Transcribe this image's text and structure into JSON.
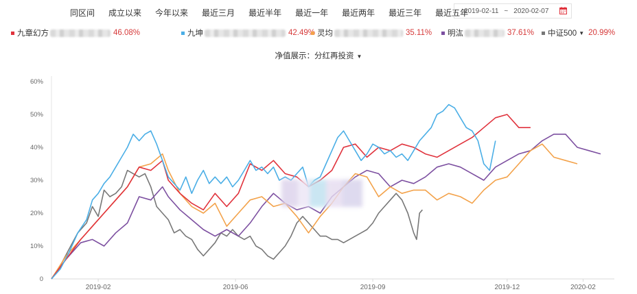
{
  "periods": [
    "同区间",
    "成立以来",
    "今年以来",
    "最近三月",
    "最近半年",
    "最近一年",
    "最近两年",
    "最近三年",
    "最近五年"
  ],
  "date_range": {
    "start": "2019-02-11",
    "sep": "~",
    "end": "2020-02-07"
  },
  "calendar_icon": "calendar-icon",
  "legend": [
    {
      "label": "九章幻方",
      "pct": "46.08%",
      "color": "#e0323c"
    },
    {
      "label": "九坤",
      "pct": "42.49%",
      "color": "#4aaee6"
    },
    {
      "label": "灵均",
      "pct": "35.11%",
      "color": "#f3a24a"
    },
    {
      "label": "明汯",
      "pct": "37.61%",
      "color": "#7c4fa0"
    },
    {
      "label": "中证500",
      "pct": "20.99%",
      "color": "#777777"
    }
  ],
  "nav_display": {
    "label": "净值展示：分红再投资"
  },
  "chart_data": {
    "type": "line",
    "x_labels": [
      "2019-02",
      "2019-06",
      "2019-09",
      "2019-12",
      "2020-02"
    ],
    "y_ticks": [
      "0",
      "10%",
      "20%",
      "30%",
      "40%",
      "50%",
      "60%"
    ],
    "ylim": [
      0,
      60
    ],
    "grid": false,
    "series": [
      {
        "name": "中证500",
        "color": "#777777",
        "points": [
          [
            0,
            0
          ],
          [
            3,
            4
          ],
          [
            6,
            9
          ],
          [
            9,
            14
          ],
          [
            12,
            17
          ],
          [
            14,
            22
          ],
          [
            16,
            19
          ],
          [
            18,
            27
          ],
          [
            20,
            25
          ],
          [
            22,
            26
          ],
          [
            24,
            28
          ],
          [
            26,
            33
          ],
          [
            28,
            32
          ],
          [
            30,
            31
          ],
          [
            32,
            32
          ],
          [
            34,
            28
          ],
          [
            36,
            22
          ],
          [
            38,
            20
          ],
          [
            40,
            18
          ],
          [
            42,
            14
          ],
          [
            44,
            15
          ],
          [
            46,
            13
          ],
          [
            48,
            12
          ],
          [
            50,
            9
          ],
          [
            52,
            7
          ],
          [
            54,
            9
          ],
          [
            56,
            11
          ],
          [
            58,
            14
          ],
          [
            60,
            13
          ],
          [
            62,
            15
          ],
          [
            64,
            13
          ],
          [
            66,
            12
          ],
          [
            68,
            13
          ],
          [
            70,
            10
          ],
          [
            72,
            9
          ],
          [
            74,
            7
          ],
          [
            76,
            6
          ],
          [
            78,
            8
          ],
          [
            80,
            10
          ],
          [
            82,
            13
          ],
          [
            84,
            17
          ],
          [
            86,
            19
          ],
          [
            88,
            17
          ],
          [
            90,
            15
          ],
          [
            92,
            13
          ],
          [
            94,
            13
          ],
          [
            96,
            12
          ],
          [
            98,
            12
          ],
          [
            100,
            11
          ],
          [
            102,
            12
          ],
          [
            104,
            13
          ],
          [
            106,
            14
          ],
          [
            108,
            15
          ],
          [
            110,
            17
          ],
          [
            112,
            20
          ],
          [
            114,
            22
          ],
          [
            116,
            24
          ],
          [
            118,
            26
          ],
          [
            120,
            24
          ],
          [
            122,
            20
          ],
          [
            124,
            14
          ],
          [
            125,
            12
          ],
          [
            126,
            20
          ],
          [
            127,
            21
          ]
        ]
      },
      {
        "name": "明汯",
        "color": "#7c4fa0",
        "points": [
          [
            0,
            0
          ],
          [
            5,
            6
          ],
          [
            10,
            11
          ],
          [
            14,
            12
          ],
          [
            18,
            10
          ],
          [
            22,
            14
          ],
          [
            26,
            17
          ],
          [
            30,
            25
          ],
          [
            34,
            24
          ],
          [
            38,
            28
          ],
          [
            40,
            25
          ],
          [
            44,
            21
          ],
          [
            48,
            18
          ],
          [
            52,
            15
          ],
          [
            56,
            13
          ],
          [
            60,
            15
          ],
          [
            64,
            13
          ],
          [
            68,
            17
          ],
          [
            72,
            22
          ],
          [
            76,
            26
          ],
          [
            80,
            23
          ],
          [
            84,
            21
          ],
          [
            88,
            22
          ],
          [
            92,
            20
          ],
          [
            96,
            25
          ],
          [
            100,
            28
          ],
          [
            104,
            31
          ],
          [
            108,
            33
          ],
          [
            112,
            32
          ],
          [
            116,
            28
          ],
          [
            120,
            30
          ],
          [
            124,
            29
          ],
          [
            128,
            31
          ],
          [
            132,
            34
          ],
          [
            136,
            35
          ],
          [
            140,
            34
          ],
          [
            144,
            32
          ],
          [
            148,
            30
          ],
          [
            152,
            34
          ],
          [
            156,
            36
          ],
          [
            160,
            38
          ],
          [
            164,
            39
          ],
          [
            168,
            42
          ],
          [
            172,
            44
          ],
          [
            176,
            44
          ],
          [
            180,
            40
          ],
          [
            184,
            39
          ],
          [
            188,
            38
          ]
        ]
      },
      {
        "name": "灵均",
        "color": "#f3a24a",
        "points": [
          [
            0,
            0
          ],
          [
            5,
            7
          ],
          [
            10,
            12
          ],
          [
            14,
            16
          ],
          [
            18,
            20
          ],
          [
            22,
            24
          ],
          [
            26,
            28
          ],
          [
            30,
            34
          ],
          [
            34,
            35
          ],
          [
            38,
            38
          ],
          [
            40,
            33
          ],
          [
            44,
            26
          ],
          [
            48,
            22
          ],
          [
            52,
            20
          ],
          [
            56,
            23
          ],
          [
            60,
            16
          ],
          [
            64,
            20
          ],
          [
            68,
            24
          ],
          [
            72,
            25
          ],
          [
            76,
            22
          ],
          [
            80,
            23
          ],
          [
            84,
            19
          ],
          [
            88,
            14
          ],
          [
            92,
            19
          ],
          [
            96,
            23
          ],
          [
            100,
            28
          ],
          [
            104,
            32
          ],
          [
            108,
            31
          ],
          [
            112,
            25
          ],
          [
            116,
            28
          ],
          [
            120,
            26
          ],
          [
            124,
            27
          ],
          [
            128,
            27
          ],
          [
            132,
            24
          ],
          [
            136,
            26
          ],
          [
            140,
            25
          ],
          [
            144,
            23
          ],
          [
            148,
            27
          ],
          [
            152,
            30
          ],
          [
            156,
            31
          ],
          [
            160,
            35
          ],
          [
            164,
            39
          ],
          [
            168,
            41
          ],
          [
            172,
            37
          ],
          [
            176,
            36
          ],
          [
            180,
            35
          ]
        ]
      },
      {
        "name": "九章幻方",
        "color": "#e0323c",
        "points": [
          [
            0,
            0
          ],
          [
            5,
            6
          ],
          [
            10,
            12
          ],
          [
            14,
            16
          ],
          [
            18,
            20
          ],
          [
            22,
            24
          ],
          [
            26,
            28
          ],
          [
            30,
            34
          ],
          [
            34,
            33
          ],
          [
            38,
            36
          ],
          [
            40,
            30
          ],
          [
            44,
            26
          ],
          [
            48,
            23
          ],
          [
            52,
            21
          ],
          [
            56,
            26
          ],
          [
            60,
            22
          ],
          [
            64,
            26
          ],
          [
            68,
            35
          ],
          [
            72,
            33
          ],
          [
            76,
            36
          ],
          [
            80,
            32
          ],
          [
            84,
            31
          ],
          [
            88,
            28
          ],
          [
            92,
            30
          ],
          [
            96,
            33
          ],
          [
            100,
            40
          ],
          [
            104,
            41
          ],
          [
            108,
            37
          ],
          [
            112,
            40
          ],
          [
            116,
            39
          ],
          [
            120,
            41
          ],
          [
            124,
            40
          ],
          [
            128,
            38
          ],
          [
            132,
            37
          ],
          [
            136,
            39
          ],
          [
            140,
            41
          ],
          [
            144,
            43
          ],
          [
            148,
            46
          ],
          [
            152,
            49
          ],
          [
            156,
            50
          ],
          [
            160,
            46
          ],
          [
            164,
            46
          ]
        ]
      },
      {
        "name": "九坤",
        "color": "#4aaee6",
        "points": [
          [
            0,
            0
          ],
          [
            3,
            3
          ],
          [
            6,
            8
          ],
          [
            9,
            14
          ],
          [
            12,
            18
          ],
          [
            14,
            24
          ],
          [
            16,
            26
          ],
          [
            18,
            29
          ],
          [
            20,
            31
          ],
          [
            22,
            34
          ],
          [
            24,
            37
          ],
          [
            26,
            40
          ],
          [
            28,
            44
          ],
          [
            30,
            42
          ],
          [
            32,
            44
          ],
          [
            34,
            45
          ],
          [
            36,
            41
          ],
          [
            38,
            36
          ],
          [
            40,
            31
          ],
          [
            42,
            29
          ],
          [
            44,
            27
          ],
          [
            46,
            31
          ],
          [
            48,
            26
          ],
          [
            50,
            30
          ],
          [
            52,
            33
          ],
          [
            54,
            29
          ],
          [
            56,
            31
          ],
          [
            58,
            29
          ],
          [
            60,
            31
          ],
          [
            62,
            28
          ],
          [
            64,
            30
          ],
          [
            66,
            33
          ],
          [
            68,
            36
          ],
          [
            70,
            33
          ],
          [
            72,
            34
          ],
          [
            74,
            32
          ],
          [
            76,
            34
          ],
          [
            78,
            30
          ],
          [
            80,
            31
          ],
          [
            82,
            30
          ],
          [
            84,
            32
          ],
          [
            86,
            34
          ],
          [
            88,
            28
          ],
          [
            90,
            30
          ],
          [
            92,
            31
          ],
          [
            94,
            35
          ],
          [
            96,
            39
          ],
          [
            98,
            43
          ],
          [
            100,
            45
          ],
          [
            102,
            42
          ],
          [
            104,
            39
          ],
          [
            106,
            36
          ],
          [
            108,
            38
          ],
          [
            110,
            41
          ],
          [
            112,
            40
          ],
          [
            114,
            38
          ],
          [
            116,
            39
          ],
          [
            118,
            37
          ],
          [
            120,
            38
          ],
          [
            122,
            36
          ],
          [
            124,
            39
          ],
          [
            126,
            42
          ],
          [
            128,
            44
          ],
          [
            130,
            46
          ],
          [
            132,
            50
          ],
          [
            134,
            51
          ],
          [
            136,
            53
          ],
          [
            138,
            52
          ],
          [
            140,
            49
          ],
          [
            142,
            46
          ],
          [
            144,
            45
          ],
          [
            146,
            42
          ],
          [
            148,
            35
          ],
          [
            150,
            33
          ],
          [
            152,
            42
          ]
        ]
      }
    ]
  }
}
